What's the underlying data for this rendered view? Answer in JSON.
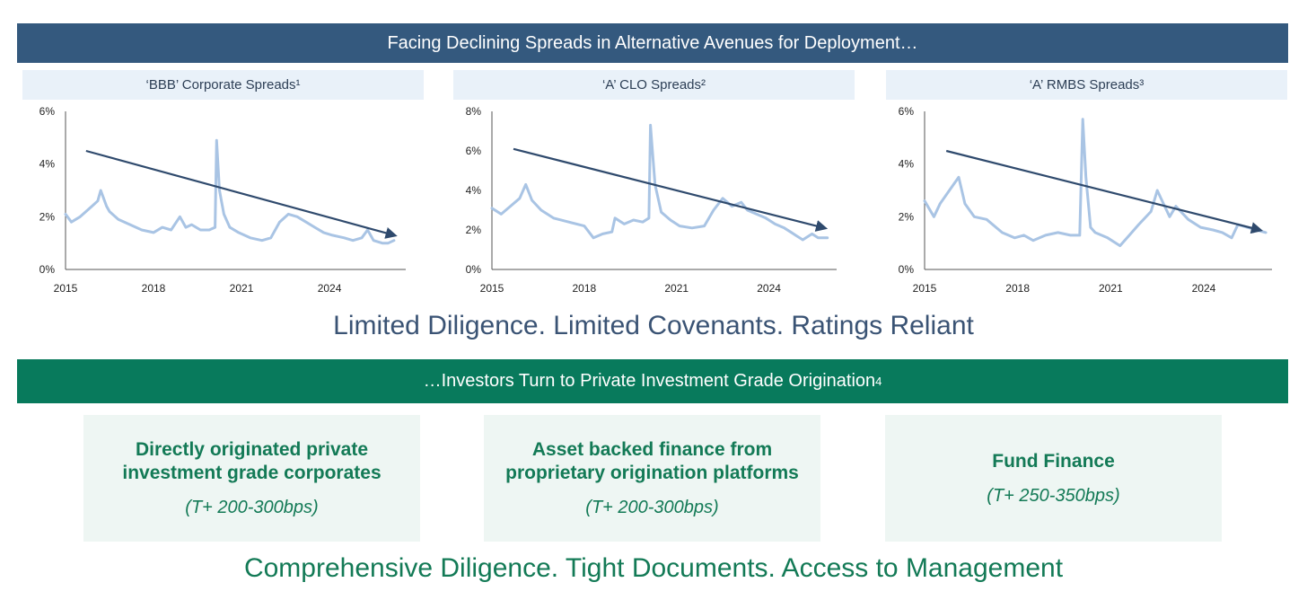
{
  "header": {
    "title": "Facing Declining Spreads in Alternative Avenues for Deployment…"
  },
  "colors": {
    "header_bg": "#34597e",
    "chart_title_bg": "#e9f1f9",
    "line": "#a9c4e4",
    "trend": "#2f4a6d",
    "green": "#087a5c",
    "card_bg": "#eef6f3"
  },
  "chart_data": [
    {
      "type": "line",
      "title": "‘BBB’ Corporate Spreads¹",
      "xlim": [
        2015,
        2026.6
      ],
      "ylim": [
        0,
        6
      ],
      "y_ticks": [
        0,
        2,
        4,
        6
      ],
      "y_tick_labels": [
        "0%",
        "2%",
        "4%",
        "6%"
      ],
      "x_ticks": [
        2015,
        2018,
        2021,
        2024
      ],
      "x_tick_labels": [
        "2015",
        "2018",
        "2021",
        "2024"
      ],
      "series": [
        {
          "name": "Spread",
          "unit": "%",
          "x": [
            2015.0,
            2015.2,
            2015.5,
            2015.9,
            2016.1,
            2016.2,
            2016.4,
            2016.5,
            2016.8,
            2017.2,
            2017.6,
            2018.0,
            2018.3,
            2018.6,
            2018.9,
            2019.1,
            2019.3,
            2019.6,
            2019.9,
            2020.1,
            2020.15,
            2020.25,
            2020.4,
            2020.6,
            2020.9,
            2021.3,
            2021.7,
            2022.0,
            2022.3,
            2022.6,
            2022.9,
            2023.2,
            2023.5,
            2023.8,
            2024.1,
            2024.5,
            2024.8,
            2025.1,
            2025.3,
            2025.5,
            2025.8,
            2026.0,
            2026.2
          ],
          "y": [
            2.1,
            1.8,
            2.0,
            2.4,
            2.6,
            3.0,
            2.4,
            2.2,
            1.9,
            1.7,
            1.5,
            1.4,
            1.6,
            1.5,
            2.0,
            1.6,
            1.7,
            1.5,
            1.5,
            1.6,
            4.9,
            3.0,
            2.1,
            1.6,
            1.4,
            1.2,
            1.1,
            1.2,
            1.8,
            2.1,
            2.0,
            1.8,
            1.6,
            1.4,
            1.3,
            1.2,
            1.1,
            1.2,
            1.5,
            1.1,
            1.0,
            1.0,
            1.1
          ]
        }
      ],
      "trend": {
        "from": [
          2015.7,
          4.5
        ],
        "to": [
          2026.2,
          1.3
        ]
      }
    },
    {
      "type": "line",
      "title": "‘A’ CLO Spreads²",
      "xlim": [
        2015,
        2026.2
      ],
      "ylim": [
        0,
        8
      ],
      "y_ticks": [
        0,
        2,
        4,
        6,
        8
      ],
      "y_tick_labels": [
        "0%",
        "2%",
        "4%",
        "6%",
        "8%"
      ],
      "x_ticks": [
        2015,
        2018,
        2021,
        2024
      ],
      "x_tick_labels": [
        "2015",
        "2018",
        "2021",
        "2024"
      ],
      "series": [
        {
          "name": "Spread",
          "unit": "%",
          "x": [
            2015.0,
            2015.3,
            2015.6,
            2015.9,
            2016.1,
            2016.3,
            2016.6,
            2017.0,
            2017.5,
            2018.0,
            2018.3,
            2018.6,
            2018.9,
            2019.0,
            2019.3,
            2019.6,
            2019.9,
            2020.1,
            2020.15,
            2020.3,
            2020.5,
            2020.8,
            2021.1,
            2021.5,
            2021.9,
            2022.2,
            2022.5,
            2022.8,
            2023.1,
            2023.3,
            2023.6,
            2023.9,
            2024.2,
            2024.5,
            2024.7,
            2024.9,
            2025.1,
            2025.4,
            2025.6,
            2025.9
          ],
          "y": [
            3.1,
            2.8,
            3.2,
            3.6,
            4.3,
            3.5,
            3.0,
            2.6,
            2.4,
            2.2,
            1.6,
            1.8,
            1.9,
            2.6,
            2.3,
            2.5,
            2.4,
            2.6,
            7.3,
            4.3,
            2.9,
            2.5,
            2.2,
            2.1,
            2.2,
            3.0,
            3.6,
            3.2,
            3.4,
            3.0,
            2.8,
            2.6,
            2.3,
            2.1,
            1.9,
            1.7,
            1.5,
            1.8,
            1.6,
            1.6
          ]
        }
      ],
      "trend": {
        "from": [
          2015.7,
          6.1
        ],
        "to": [
          2025.8,
          2.1
        ]
      }
    },
    {
      "type": "line",
      "title": "‘A’ RMBS Spreads³",
      "xlim": [
        2015,
        2026.2
      ],
      "ylim": [
        0,
        6
      ],
      "y_ticks": [
        0,
        2,
        4,
        6
      ],
      "y_tick_labels": [
        "0%",
        "2%",
        "4%",
        "6%"
      ],
      "x_ticks": [
        2015,
        2018,
        2021,
        2024
      ],
      "x_tick_labels": [
        "2015",
        "2018",
        "2021",
        "2024"
      ],
      "series": [
        {
          "name": "Spread",
          "unit": "%",
          "x": [
            2015.0,
            2015.3,
            2015.5,
            2015.8,
            2016.1,
            2016.3,
            2016.6,
            2017.0,
            2017.5,
            2017.9,
            2018.2,
            2018.5,
            2018.9,
            2019.3,
            2019.7,
            2020.0,
            2020.1,
            2020.2,
            2020.35,
            2020.5,
            2020.9,
            2021.3,
            2021.6,
            2021.9,
            2022.3,
            2022.5,
            2022.7,
            2022.9,
            2023.1,
            2023.5,
            2023.9,
            2024.3,
            2024.6,
            2024.9,
            2025.1,
            2025.4,
            2025.7,
            2026.0
          ],
          "y": [
            2.6,
            2.0,
            2.5,
            3.0,
            3.5,
            2.5,
            2.0,
            1.9,
            1.4,
            1.2,
            1.3,
            1.1,
            1.3,
            1.4,
            1.3,
            1.3,
            5.7,
            3.5,
            1.6,
            1.4,
            1.2,
            0.9,
            1.3,
            1.7,
            2.2,
            3.0,
            2.5,
            2.0,
            2.4,
            1.9,
            1.6,
            1.5,
            1.4,
            1.2,
            1.7,
            1.6,
            1.5,
            1.4
          ]
        }
      ],
      "trend": {
        "from": [
          2015.7,
          4.5
        ],
        "to": [
          2025.8,
          1.5
        ]
      }
    }
  ],
  "tagline_top": "Limited Diligence. Limited Covenants. Ratings Reliant",
  "green_banner": {
    "text": "…Investors Turn to Private Investment Grade Origination",
    "sup": "4"
  },
  "cards": [
    {
      "title": "Directly originated private\ninvestment grade corporates",
      "subtitle": "(T+ 200-300bps)"
    },
    {
      "title": "Asset backed finance from\nproprietary origination platforms",
      "subtitle": "(T+ 200-300bps)"
    },
    {
      "title": "Fund Finance",
      "subtitle": "(T+ 250-350bps)"
    }
  ],
  "tagline_bottom": "Comprehensive Diligence. Tight Documents. Access to Management"
}
